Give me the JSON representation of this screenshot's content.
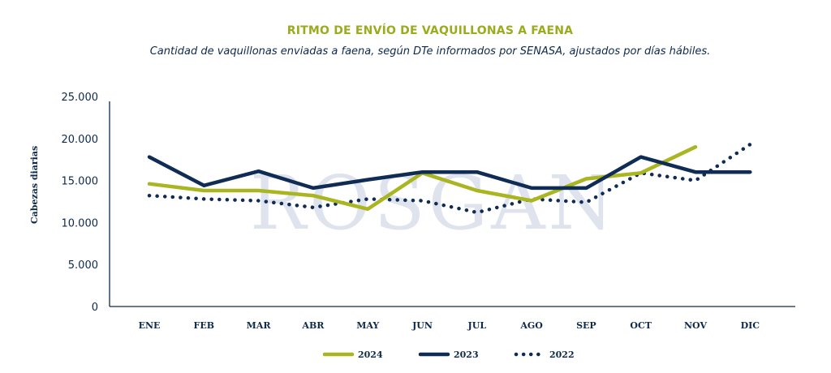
{
  "colors": {
    "title": "#9aab1c",
    "text": "#0d2a4d",
    "axis": "#0d2a4d",
    "series_2024": "#a9b521",
    "series_2023": "#0f2c54",
    "series_2022": "#0f2c54",
    "watermark": "#dfe3ee"
  },
  "watermark_text": "ROSGAN",
  "chart_data": {
    "type": "line",
    "title": "RITMO DE ENVÍO DE VAQUILLONAS A FAENA",
    "subtitle": "Cantidad de vaquillonas enviadas a faena, según DTe informados por SENASA, ajustados por días hábiles.",
    "ylabel": "Cabezas diarias",
    "xlabel": "",
    "ylim": [
      0,
      25000
    ],
    "yticks": [
      0,
      5000,
      10000,
      15000,
      20000,
      25000
    ],
    "ytick_labels": [
      "0",
      "5.000",
      "10.000",
      "15.000",
      "20.000",
      "25.000"
    ],
    "categories": [
      "ENE",
      "FEB",
      "MAR",
      "ABR",
      "MAY",
      "JUN",
      "JUL",
      "AGO",
      "SEP",
      "OCT",
      "NOV",
      "DIC"
    ],
    "legend_position": "bottom",
    "grid": false,
    "series": [
      {
        "name": "2024",
        "style": "solid",
        "values": [
          14600,
          13800,
          13800,
          13200,
          11600,
          15900,
          13800,
          12600,
          15200,
          15900,
          19000,
          null
        ]
      },
      {
        "name": "2023",
        "style": "solid",
        "values": [
          17800,
          14400,
          16100,
          14100,
          15100,
          16000,
          16000,
          14100,
          14100,
          17800,
          16000,
          16000
        ]
      },
      {
        "name": "2022",
        "style": "dotted",
        "values": [
          13200,
          12800,
          12600,
          11800,
          12800,
          12600,
          11200,
          12800,
          12400,
          15900,
          15000,
          19300
        ]
      }
    ]
  }
}
